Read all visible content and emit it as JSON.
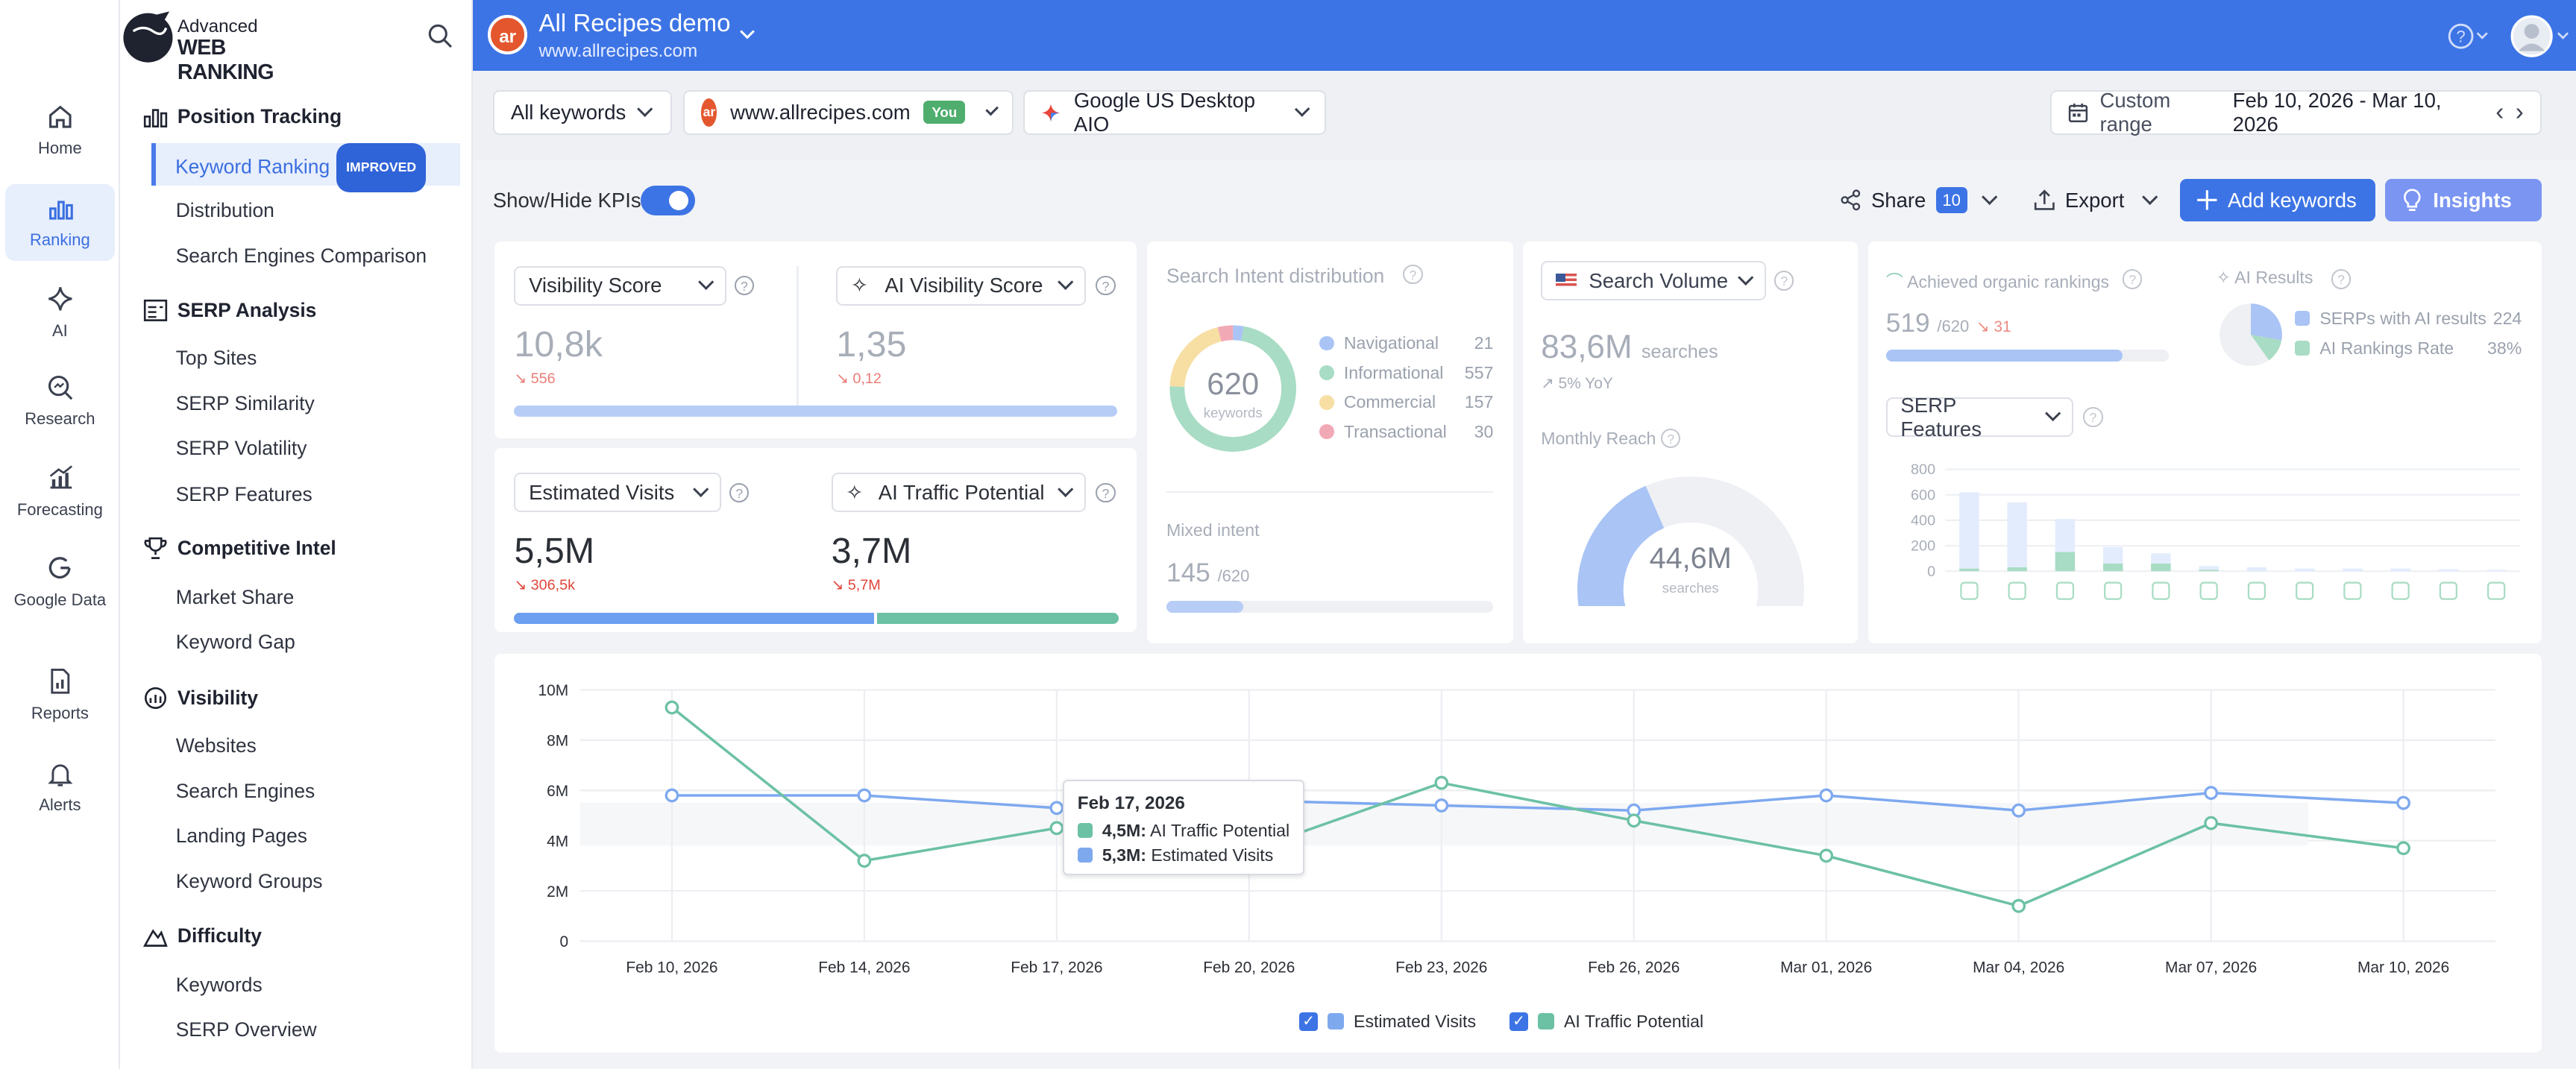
{
  "logo": {
    "line1": "Advanced",
    "line2": "WEB RANKING"
  },
  "iconbar": [
    {
      "label": "Home",
      "icon": "home-icon"
    },
    {
      "label": "Ranking",
      "icon": "ranking-icon",
      "active": true
    },
    {
      "label": "AI",
      "icon": "sparkle-icon"
    },
    {
      "label": "Research",
      "icon": "research-icon"
    },
    {
      "label": "Forecasting",
      "icon": "forecasting-icon"
    },
    {
      "label": "Google Data",
      "icon": "google-icon"
    },
    {
      "label": "Reports",
      "icon": "reports-icon"
    },
    {
      "label": "Alerts",
      "icon": "bell-icon"
    }
  ],
  "nav": {
    "position_tracking": {
      "title": "Position Tracking",
      "items": [
        "Keyword Ranking",
        "Distribution",
        "Search Engines Comparison"
      ],
      "badge": "IMPROVED"
    },
    "serp_analysis": {
      "title": "SERP Analysis",
      "items": [
        "Top Sites",
        "SERP Similarity",
        "SERP Volatility",
        "SERP Features"
      ]
    },
    "competitive_intel": {
      "title": "Competitive Intel",
      "items": [
        "Market Share",
        "Keyword Gap"
      ]
    },
    "visibility": {
      "title": "Visibility",
      "items": [
        "Websites",
        "Search Engines",
        "Landing Pages",
        "Keyword Groups"
      ]
    },
    "difficulty": {
      "title": "Difficulty",
      "items": [
        "Keywords",
        "SERP Overview"
      ]
    }
  },
  "project": {
    "avatar": "ar",
    "name": "All Recipes demo",
    "url": "www.allrecipes.com"
  },
  "filters": {
    "keywords": "All keywords",
    "website": "www.allrecipes.com",
    "you_badge": "You",
    "engine": "Google US Desktop AIO",
    "range_label": "Custom range",
    "range_value": "Feb 10, 2026 - Mar 10, 2026"
  },
  "toolbar": {
    "kpi_toggle": "Show/Hide KPIs",
    "share": "Share",
    "share_count": "10",
    "export": "Export",
    "add_keywords": "Add keywords",
    "insights": "Insights"
  },
  "kpi": {
    "visibility": {
      "label": "Visibility Score",
      "value": "10,8k",
      "delta": "556"
    },
    "ai_visibility": {
      "label": "AI Visibility Score",
      "value": "1,35",
      "delta": "0,12"
    },
    "est_visits": {
      "label": "Estimated Visits",
      "value": "5,5M",
      "delta": "306,5k"
    },
    "ai_traffic": {
      "label": "AI Traffic Potential",
      "value": "3,7M",
      "delta": "5,7M"
    }
  },
  "intent": {
    "title": "Search Intent distribution",
    "total": "620",
    "unit": "keywords",
    "rows": [
      {
        "label": "Navigational",
        "value": "21",
        "color": "#a9c4f5"
      },
      {
        "label": "Informational",
        "value": "557",
        "color": "#a8dcc4"
      },
      {
        "label": "Commercial",
        "value": "157",
        "color": "#f7dfa4"
      },
      {
        "label": "Transactional",
        "value": "30",
        "color": "#f2a9b6"
      }
    ],
    "mixed_label": "Mixed intent",
    "mixed_value": "145",
    "mixed_total": "/620",
    "mixed_fraction": 0.234
  },
  "volume": {
    "label": "Search Volume",
    "value": "83,6M",
    "unit": "searches",
    "yoy": "5% YoY",
    "reach_label": "Monthly Reach",
    "reach_value": "44,6M",
    "reach_unit": "searches",
    "reach_fraction": 0.4
  },
  "organic": {
    "label": "Achieved organic rankings",
    "value": "519",
    "total": "/620",
    "delta": "31",
    "fraction": 0.837
  },
  "ai_results": {
    "label": "AI Results",
    "rows": [
      {
        "label": "SERPs with AI results",
        "value": "224",
        "color": "#a9c4f5"
      },
      {
        "label": "AI Rankings Rate",
        "value": "38%",
        "color": "#a8dcc4"
      }
    ]
  },
  "serp_features": {
    "label": "SERP Features",
    "yticks": [
      "800",
      "600",
      "400",
      "200",
      "0"
    ],
    "ymax": 800,
    "bars": [
      [
        620,
        20
      ],
      [
        540,
        30
      ],
      [
        410,
        150
      ],
      [
        190,
        60
      ],
      [
        140,
        60
      ],
      [
        40,
        10
      ],
      [
        30,
        0
      ],
      [
        20,
        0
      ],
      [
        20,
        0
      ],
      [
        20,
        0
      ],
      [
        15,
        0
      ],
      [
        10,
        0
      ]
    ],
    "icons": [
      "video-icon",
      "news-icon",
      "knowledge-icon",
      "images-icon",
      "ai-overview-icon",
      "filters-icon",
      "book-icon",
      "forum-icon",
      "map-pin-icon",
      "links-icon",
      "table-icon",
      "reviews-icon"
    ]
  },
  "chart_data": {
    "type": "line",
    "x": [
      "Feb 10, 2026",
      "Feb 14, 2026",
      "Feb 17, 2026",
      "Feb 20, 2026",
      "Feb 23, 2026",
      "Feb 26, 2026",
      "Mar 01, 2026",
      "Mar 04, 2026",
      "Mar 07, 2026",
      "Mar 10, 2026"
    ],
    "yticks": [
      "10M",
      "8M",
      "6M",
      "4M",
      "2M",
      "0"
    ],
    "ylim": [
      0,
      10000000
    ],
    "series": [
      {
        "name": "Estimated Visits",
        "color": "#7ea9ef",
        "values": [
          5.8,
          5.8,
          5.3,
          5.6,
          5.4,
          5.2,
          5.8,
          5.2,
          5.9,
          5.5
        ]
      },
      {
        "name": "AI Traffic Potential",
        "color": "#6cc1a4",
        "values": [
          9.3,
          3.2,
          4.5,
          3.6,
          6.3,
          4.8,
          3.4,
          1.4,
          4.7,
          3.7
        ]
      }
    ],
    "tooltip": {
      "date": "Feb 17, 2026",
      "rows": [
        {
          "value": "4,5M:",
          "label": "AI Traffic Potential",
          "color": "#6cc1a4"
        },
        {
          "value": "5,3M:",
          "label": "Estimated Visits",
          "color": "#7ea9ef"
        }
      ]
    }
  }
}
